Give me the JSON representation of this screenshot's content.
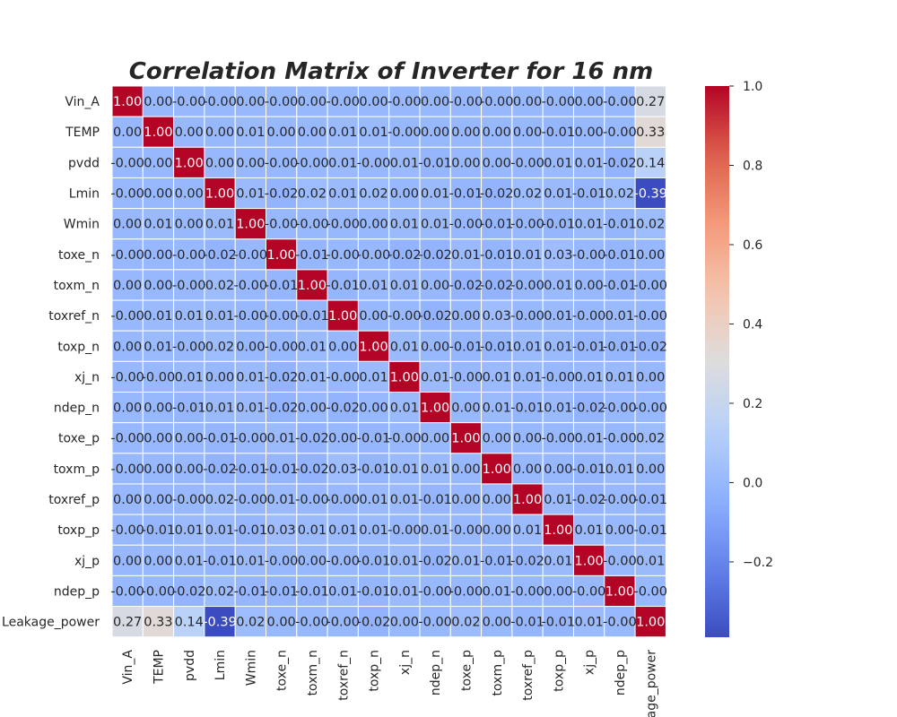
{
  "chart_data": {
    "type": "heatmap",
    "title": "Correlation Matrix of Inverter for 16 nm",
    "variables": [
      "Vin_A",
      "TEMP",
      "pvdd",
      "Lmin",
      "Wmin",
      "toxe_n",
      "toxm_n",
      "toxref_n",
      "toxp_n",
      "xj_n",
      "ndep_n",
      "toxe_p",
      "toxm_p",
      "toxref_p",
      "toxp_p",
      "xj_p",
      "ndep_p",
      "Leakage_power"
    ],
    "row_labels": [
      "Vin_A",
      "TEMP",
      "pvdd",
      "Lmin",
      "Wmin",
      "toxe_n",
      "toxm_n",
      "toxref_n",
      "toxp_n",
      "xj_n",
      "ndep_n",
      "toxe_p",
      "toxm_p",
      "toxref_p",
      "toxp_p",
      "xj_p",
      "ndep_p",
      "Leakage_power"
    ],
    "col_labels": [
      "Vin_A",
      "TEMP",
      "pvdd",
      "Lmin",
      "Wmin",
      "toxe_n",
      "toxm_n",
      "toxref_n",
      "toxp_n",
      "xj_n",
      "ndep_n",
      "toxe_p",
      "toxm_p",
      "toxref_p",
      "toxp_p",
      "xj_p",
      "ndep_p",
      "age_power"
    ],
    "values": [
      [
        1.0,
        0.0,
        -0.0,
        -0.0,
        0.0,
        -0.0,
        0.0,
        -0.0,
        0.0,
        -0.0,
        0.0,
        -0.0,
        -0.0,
        0.0,
        -0.0,
        0.0,
        -0.0,
        0.27
      ],
      [
        0.0,
        1.0,
        0.0,
        0.0,
        0.01,
        0.0,
        0.0,
        0.01,
        0.01,
        -0.0,
        0.0,
        0.0,
        0.0,
        0.0,
        -0.01,
        0.0,
        -0.0,
        0.33
      ],
      [
        -0.0,
        0.0,
        1.0,
        0.0,
        0.0,
        -0.0,
        -0.0,
        0.01,
        -0.0,
        0.01,
        -0.01,
        0.0,
        0.0,
        -0.0,
        0.01,
        0.01,
        -0.02,
        0.14
      ],
      [
        -0.0,
        0.0,
        0.0,
        1.0,
        0.01,
        -0.02,
        0.02,
        0.01,
        0.02,
        0.0,
        0.01,
        -0.01,
        -0.02,
        0.02,
        0.01,
        -0.01,
        0.02,
        -0.39
      ],
      [
        0.0,
        0.01,
        0.0,
        0.01,
        1.0,
        -0.0,
        -0.0,
        -0.0,
        0.0,
        0.01,
        0.01,
        -0.0,
        -0.01,
        -0.0,
        -0.01,
        0.01,
        -0.01,
        0.02
      ],
      [
        -0.0,
        0.0,
        -0.0,
        -0.02,
        -0.0,
        1.0,
        -0.01,
        -0.0,
        -0.0,
        -0.02,
        -0.02,
        0.01,
        -0.01,
        0.01,
        0.03,
        -0.0,
        -0.01,
        0.0
      ],
      [
        0.0,
        0.0,
        -0.0,
        0.02,
        -0.0,
        -0.01,
        1.0,
        -0.01,
        0.01,
        0.01,
        0.0,
        -0.02,
        -0.02,
        -0.0,
        0.01,
        0.0,
        -0.01,
        -0.0
      ],
      [
        -0.0,
        0.01,
        0.01,
        0.01,
        -0.0,
        -0.0,
        -0.01,
        1.0,
        0.0,
        -0.0,
        -0.02,
        0.0,
        0.03,
        -0.0,
        0.01,
        -0.0,
        0.01,
        -0.0
      ],
      [
        0.0,
        0.01,
        -0.0,
        0.02,
        0.0,
        -0.0,
        0.01,
        0.0,
        1.0,
        0.01,
        0.0,
        -0.01,
        -0.01,
        0.01,
        0.01,
        -0.01,
        -0.01,
        -0.02
      ],
      [
        -0.0,
        -0.0,
        0.01,
        0.0,
        0.01,
        -0.02,
        0.01,
        -0.0,
        0.01,
        1.0,
        0.01,
        -0.0,
        0.01,
        0.01,
        -0.0,
        0.01,
        0.01,
        0.0
      ],
      [
        0.0,
        0.0,
        -0.01,
        0.01,
        0.01,
        -0.02,
        0.0,
        -0.02,
        0.0,
        0.01,
        1.0,
        0.0,
        0.01,
        -0.01,
        0.01,
        -0.02,
        -0.0,
        -0.0
      ],
      [
        -0.0,
        0.0,
        0.0,
        -0.01,
        -0.0,
        0.01,
        -0.02,
        0.0,
        -0.01,
        -0.0,
        0.0,
        1.0,
        0.0,
        0.0,
        -0.0,
        0.01,
        -0.0,
        0.02
      ],
      [
        -0.0,
        0.0,
        0.0,
        -0.02,
        -0.01,
        -0.01,
        -0.02,
        0.03,
        -0.01,
        0.01,
        0.01,
        0.0,
        1.0,
        0.0,
        0.0,
        -0.01,
        0.01,
        0.0
      ],
      [
        0.0,
        0.0,
        -0.0,
        0.02,
        -0.0,
        0.01,
        -0.0,
        -0.0,
        0.01,
        0.01,
        -0.01,
        0.0,
        0.0,
        1.0,
        0.01,
        -0.02,
        -0.0,
        -0.01
      ],
      [
        -0.0,
        -0.01,
        0.01,
        0.01,
        -0.01,
        0.03,
        0.01,
        0.01,
        0.01,
        -0.0,
        0.01,
        -0.0,
        0.0,
        0.01,
        1.0,
        0.01,
        0.0,
        -0.01
      ],
      [
        0.0,
        0.0,
        0.01,
        -0.01,
        0.01,
        -0.0,
        0.0,
        -0.0,
        -0.01,
        0.01,
        -0.02,
        0.01,
        -0.01,
        -0.02,
        0.01,
        1.0,
        -0.0,
        0.01
      ],
      [
        -0.0,
        -0.0,
        -0.02,
        0.02,
        -0.01,
        -0.01,
        -0.01,
        0.01,
        -0.01,
        0.01,
        -0.0,
        -0.0,
        0.01,
        -0.0,
        0.0,
        -0.0,
        1.0,
        -0.0
      ],
      [
        0.27,
        0.33,
        0.14,
        -0.39,
        0.02,
        0.0,
        -0.0,
        -0.0,
        -0.02,
        0.0,
        -0.0,
        0.02,
        0.0,
        -0.01,
        -0.01,
        0.01,
        -0.0,
        1.0
      ]
    ],
    "value_format": "2 decimals",
    "colormap": "coolwarm",
    "vmin": -0.39,
    "vmax": 1.0,
    "colorbar_ticks": [
      1.0,
      0.8,
      0.6,
      0.4,
      0.2,
      0.0,
      -0.2
    ],
    "colorbar_tick_labels": [
      "1.0",
      "0.8",
      "0.6",
      "0.4",
      "0.2",
      "0.0",
      "−0.2"
    ],
    "grid": "white cell borders"
  }
}
